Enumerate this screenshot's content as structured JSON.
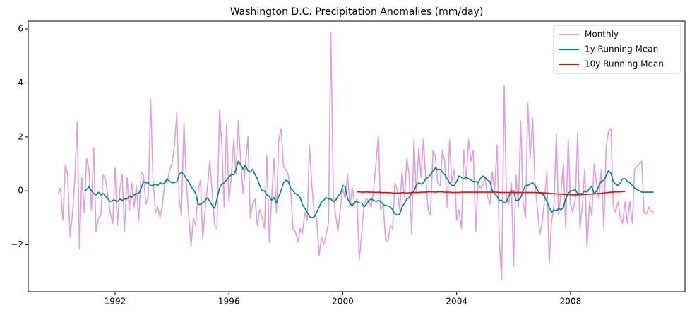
{
  "chart_data": {
    "type": "line",
    "title": "Washington D.C. Precipitation Anomalies (mm/day)",
    "x": [
      1990,
      1990.08,
      1990.17,
      1990.25,
      1990.33,
      1990.42,
      1990.5,
      1990.58,
      1990.67,
      1990.75,
      1990.83,
      1990.92,
      1991,
      1991.08,
      1991.17,
      1991.25,
      1991.33,
      1991.42,
      1991.5,
      1991.58,
      1991.67,
      1991.75,
      1991.83,
      1991.92,
      1992,
      1992.08,
      1992.17,
      1992.25,
      1992.33,
      1992.42,
      1992.5,
      1992.58,
      1992.67,
      1992.75,
      1992.83,
      1992.92,
      1993,
      1993.08,
      1993.17,
      1993.25,
      1993.33,
      1993.42,
      1993.5,
      1993.58,
      1993.67,
      1993.75,
      1993.83,
      1993.92,
      1994,
      1994.08,
      1994.17,
      1994.25,
      1994.33,
      1994.42,
      1994.5,
      1994.58,
      1994.67,
      1994.75,
      1994.83,
      1994.92,
      1995,
      1995.08,
      1995.17,
      1995.25,
      1995.33,
      1995.42,
      1995.5,
      1995.58,
      1995.67,
      1995.75,
      1995.83,
      1995.92,
      1996,
      1996.08,
      1996.17,
      1996.25,
      1996.33,
      1996.42,
      1996.5,
      1996.58,
      1996.67,
      1996.75,
      1996.83,
      1996.92,
      1997,
      1997.08,
      1997.17,
      1997.25,
      1997.33,
      1997.42,
      1997.5,
      1997.58,
      1997.67,
      1997.75,
      1997.83,
      1997.92,
      1998,
      1998.08,
      1998.17,
      1998.25,
      1998.33,
      1998.42,
      1998.5,
      1998.58,
      1998.67,
      1998.75,
      1998.83,
      1998.92,
      1999,
      1999.08,
      1999.17,
      1999.25,
      1999.33,
      1999.42,
      1999.5,
      1999.58,
      1999.67,
      1999.75,
      1999.83,
      1999.92,
      2000,
      2000.08,
      2000.17,
      2000.25,
      2000.33,
      2000.42,
      2000.5,
      2000.58,
      2000.67,
      2000.75,
      2000.83,
      2000.92,
      2001,
      2001.08,
      2001.17,
      2001.25,
      2001.33,
      2001.42,
      2001.5,
      2001.58,
      2001.67,
      2001.75,
      2001.83,
      2001.92,
      2002,
      2002.08,
      2002.17,
      2002.25,
      2002.33,
      2002.42,
      2002.5,
      2002.58,
      2002.67,
      2002.75,
      2002.83,
      2002.92,
      2003,
      2003.08,
      2003.17,
      2003.25,
      2003.33,
      2003.42,
      2003.5,
      2003.58,
      2003.67,
      2003.75,
      2003.83,
      2003.92,
      2004,
      2004.08,
      2004.17,
      2004.25,
      2004.33,
      2004.42,
      2004.5,
      2004.58,
      2004.67,
      2004.75,
      2004.83,
      2004.92,
      2005,
      2005.08,
      2005.17,
      2005.25,
      2005.33,
      2005.42,
      2005.5,
      2005.58,
      2005.67,
      2005.75,
      2005.83,
      2005.92,
      2006,
      2006.08,
      2006.17,
      2006.25,
      2006.33,
      2006.42,
      2006.5,
      2006.58,
      2006.67,
      2006.75,
      2006.83,
      2006.92,
      2007,
      2007.08,
      2007.17,
      2007.25,
      2007.33,
      2007.42,
      2007.5,
      2007.58,
      2007.67,
      2007.75,
      2007.83,
      2007.92,
      2008,
      2008.08,
      2008.17,
      2008.25,
      2008.33,
      2008.42,
      2008.5,
      2008.58,
      2008.67,
      2008.75,
      2008.83,
      2008.92,
      2009,
      2009.08,
      2009.17,
      2009.25,
      2009.33,
      2009.42,
      2009.5,
      2009.58,
      2009.67,
      2009.75,
      2009.83,
      2009.92,
      2010,
      2010.08,
      2010.17,
      2010.25,
      2010.33,
      2010.42,
      2010.5,
      2010.58,
      2010.67,
      2010.75,
      2010.83,
      2010.92
    ],
    "series": [
      {
        "name": "Monthly",
        "color": "#dda0dd",
        "values": [
          -0.1,
          0.1,
          -1.1,
          0.95,
          0.7,
          -1.7,
          -0.9,
          0.3,
          2.55,
          -2.15,
          0.5,
          -0.8,
          1.2,
          0.8,
          -0.7,
          1.6,
          -1.5,
          -1.0,
          -0.9,
          0.6,
          0.4,
          -0.2,
          -0.8,
          -1.2,
          0.85,
          -1.3,
          0.1,
          0.6,
          -1.5,
          0.5,
          -0.7,
          0.3,
          -0.6,
          0.2,
          -1.1,
          0.7,
          0.6,
          -0.5,
          -0.2,
          3.4,
          0.5,
          -0.8,
          -0.6,
          -1.0,
          -0.5,
          0.4,
          0.3,
          0.8,
          1.0,
          1.6,
          2.9,
          -0.3,
          -0.9,
          2.55,
          0.4,
          -0.8,
          -2.05,
          -1.0,
          -1.3,
          0.0,
          0.4,
          -1.8,
          -0.6,
          0.2,
          1.1,
          -0.2,
          -1.3,
          -1.4,
          3.0,
          1.7,
          -0.6,
          2.5,
          -0.4,
          0.5,
          1.9,
          0.6,
          2.6,
          1.0,
          -0.1,
          1.0,
          2.0,
          -1.0,
          -0.5,
          -0.3,
          -1.3,
          -0.7,
          -1.0,
          -1.4,
          1.3,
          -1.9,
          -0.3,
          1.2,
          -0.8,
          1.9,
          2.3,
          0.9,
          0.8,
          0.6,
          0.0,
          -1.4,
          -1.5,
          -1.9,
          -1.4,
          -1.6,
          -0.8,
          -1.1,
          1.7,
          0.1,
          -0.9,
          -1.0,
          -2.4,
          -1.7,
          -2.0,
          -1.6,
          -1.2,
          5.85,
          -0.2,
          -0.9,
          -1.5,
          -0.6,
          0.1,
          -0.3,
          0.6,
          -0.6,
          0.1,
          -0.5,
          -0.3,
          -2.55,
          -1.5,
          -0.5,
          -0.3,
          -0.4,
          -0.6,
          0.0,
          1.1,
          2.05,
          -0.7,
          -0.5,
          -1.8,
          -1.9,
          -1.3,
          -1.4,
          0.3,
          0.0,
          -0.7,
          0.7,
          -0.3,
          1.2,
          0.6,
          -1.6,
          1.9,
          -0.1,
          1.6,
          0.5,
          1.9,
          0.4,
          -0.7,
          -0.9,
          1.5,
          1.3,
          0.3,
          0.2,
          1.5,
          1.1,
          -0.6,
          1.9,
          0.3,
          0.8,
          -1.1,
          -0.7,
          -1.4,
          1.5,
          0.4,
          1.9,
          1.1,
          1.5,
          -1.5,
          0.3,
          0.1,
          0.2,
          0.5,
          -0.2,
          -0.5,
          0.7,
          0.0,
          1.7,
          -1.9,
          -3.3,
          3.9,
          -0.3,
          -0.5,
          0.3,
          -2.8,
          0.6,
          -0.6,
          2.6,
          -0.4,
          -1.0,
          3.25,
          1.2,
          2.7,
          0.3,
          -0.6,
          -1.6,
          -1.2,
          -0.4,
          0.7,
          -2.7,
          -1.2,
          -0.5,
          2.1,
          -0.9,
          0.0,
          1.0,
          -1.4,
          1.9,
          -0.5,
          -0.8,
          -0.3,
          2.15,
          -1.4,
          -0.5,
          0.8,
          -2.1,
          -0.4,
          -0.9,
          1.0,
          0.2,
          -0.3,
          0.8,
          -1.4,
          1.6,
          2.2,
          2.3,
          -0.5,
          -0.8,
          -0.4,
          -1.0,
          -1.2,
          -0.4,
          -1.2,
          -0.4,
          -1.2,
          0.8,
          0.9,
          1.0,
          1.1,
          -0.8,
          -0.85,
          -0.6,
          -0.75,
          -0.8
        ]
      },
      {
        "name": "1y Running Mean",
        "color": "#008080",
        "values": [
          null,
          null,
          null,
          null,
          null,
          null,
          null,
          null,
          null,
          null,
          null,
          0.0,
          0.05,
          0.15,
          0.0,
          -0.1,
          -0.15,
          -0.05,
          -0.15,
          -0.1,
          -0.2,
          -0.3,
          -0.4,
          -0.35,
          -0.35,
          -0.4,
          -0.3,
          -0.35,
          -0.3,
          -0.3,
          -0.2,
          -0.25,
          -0.15,
          -0.1,
          -0.1,
          0.1,
          0.35,
          0.3,
          0.3,
          0.2,
          0.2,
          0.25,
          0.2,
          0.3,
          0.25,
          0.3,
          0.45,
          0.35,
          0.3,
          0.3,
          0.35,
          0.6,
          0.7,
          0.6,
          0.45,
          0.35,
          0.15,
          0.05,
          -0.1,
          -0.5,
          -0.5,
          -0.45,
          -0.35,
          -0.25,
          -0.4,
          -0.55,
          -0.65,
          -0.3,
          0.1,
          0.25,
          0.3,
          0.4,
          0.5,
          0.6,
          0.6,
          0.8,
          1.1,
          0.95,
          0.8,
          0.95,
          0.75,
          0.7,
          0.8,
          0.6,
          0.45,
          0.2,
          0.0,
          0.0,
          -0.15,
          -0.2,
          -0.35,
          -0.25,
          -0.45,
          -0.2,
          0.0,
          0.3,
          0.4,
          0.35,
          0.1,
          0.0,
          -0.1,
          -0.15,
          -0.25,
          -0.5,
          -0.65,
          -0.8,
          -0.95,
          -1.0,
          -0.95,
          -0.8,
          -0.6,
          -0.4,
          -0.35,
          -0.25,
          -0.3,
          -0.3,
          -0.4,
          -0.35,
          -0.2,
          -0.1,
          0.2,
          0.15,
          -0.3,
          -0.45,
          -0.55,
          -0.4,
          -0.4,
          -0.45,
          -0.45,
          -0.6,
          -0.5,
          -0.35,
          -0.3,
          -0.35,
          -0.4,
          -0.35,
          -0.4,
          -0.5,
          -0.55,
          -0.55,
          -0.6,
          -0.7,
          -0.85,
          -0.9,
          -0.85,
          -0.6,
          -0.45,
          -0.3,
          -0.25,
          -0.1,
          0.0,
          0.2,
          0.3,
          0.25,
          0.3,
          0.45,
          0.5,
          0.6,
          0.75,
          0.85,
          0.8,
          0.8,
          0.7,
          0.6,
          0.45,
          0.3,
          0.2,
          0.2,
          0.35,
          0.55,
          0.5,
          0.45,
          0.5,
          0.45,
          0.4,
          0.35,
          0.35,
          0.3,
          0.45,
          0.55,
          0.5,
          0.4,
          0.35,
          0.0,
          -0.1,
          -0.2,
          -0.35,
          -0.35,
          -0.45,
          -0.4,
          -0.2,
          0.0,
          0.0,
          -0.35,
          -0.35,
          -0.25,
          0.0,
          0.2,
          0.2,
          0.25,
          0.3,
          0.2,
          0.05,
          -0.1,
          -0.1,
          -0.2,
          -0.4,
          -0.6,
          -0.8,
          -0.7,
          -0.75,
          -0.65,
          -0.7,
          -0.6,
          -0.3,
          -0.1,
          0.0,
          0.0,
          0.05,
          -0.1,
          -0.1,
          -0.1,
          0.0,
          -0.05,
          0.1,
          0.15,
          -0.1,
          0.0,
          0.2,
          0.35,
          0.4,
          0.55,
          0.75,
          0.65,
          0.35,
          0.25,
          0.2,
          0.3,
          0.45,
          0.45,
          0.35,
          0.3,
          0.2,
          0.1,
          0.05,
          0.0,
          -0.05,
          -0.05,
          -0.05,
          -0.05,
          -0.05,
          -0.05
        ]
      },
      {
        "name": "10y Running Mean",
        "color": "#ff0000",
        "values": [
          null,
          null,
          null,
          null,
          null,
          null,
          null,
          null,
          null,
          null,
          null,
          null,
          null,
          null,
          null,
          null,
          null,
          null,
          null,
          null,
          null,
          null,
          null,
          null,
          null,
          null,
          null,
          null,
          null,
          null,
          null,
          null,
          null,
          null,
          null,
          null,
          null,
          null,
          null,
          null,
          null,
          null,
          null,
          null,
          null,
          null,
          null,
          null,
          null,
          null,
          null,
          null,
          null,
          null,
          null,
          null,
          null,
          null,
          null,
          null,
          null,
          null,
          null,
          null,
          null,
          null,
          null,
          null,
          null,
          null,
          null,
          null,
          null,
          null,
          null,
          null,
          null,
          null,
          null,
          null,
          null,
          null,
          null,
          null,
          null,
          null,
          null,
          null,
          null,
          null,
          null,
          null,
          null,
          null,
          null,
          null,
          null,
          null,
          null,
          null,
          null,
          null,
          null,
          null,
          null,
          null,
          null,
          null,
          null,
          null,
          null,
          null,
          null,
          null,
          null,
          null,
          null,
          null,
          null,
          null,
          null,
          null,
          null,
          null,
          null,
          null,
          -0.04,
          -0.04,
          -0.05,
          -0.05,
          -0.04,
          -0.05,
          -0.05,
          -0.05,
          -0.06,
          -0.05,
          -0.06,
          -0.07,
          -0.06,
          -0.07,
          -0.07,
          -0.08,
          -0.08,
          -0.08,
          -0.08,
          -0.07,
          -0.07,
          -0.08,
          -0.07,
          -0.07,
          -0.06,
          -0.06,
          -0.06,
          -0.05,
          -0.05,
          -0.05,
          -0.04,
          -0.04,
          -0.04,
          -0.05,
          -0.04,
          -0.04,
          -0.04,
          -0.05,
          -0.05,
          -0.05,
          -0.06,
          -0.06,
          -0.06,
          -0.06,
          -0.05,
          -0.05,
          -0.05,
          -0.05,
          -0.05,
          -0.05,
          -0.05,
          -0.05,
          -0.05,
          -0.05,
          -0.05,
          -0.05,
          -0.05,
          -0.05,
          -0.05,
          -0.05,
          -0.06,
          -0.06,
          -0.06,
          -0.06,
          -0.06,
          -0.06,
          -0.06,
          -0.06,
          -0.06,
          -0.06,
          -0.06,
          -0.06,
          -0.06,
          -0.06,
          -0.06,
          -0.06,
          -0.07,
          -0.07,
          -0.07,
          -0.08,
          -0.08,
          -0.09,
          -0.1,
          -0.1,
          -0.11,
          -0.12,
          -0.12,
          -0.13,
          -0.13,
          -0.14,
          -0.14,
          -0.15,
          -0.15,
          -0.15,
          -0.14,
          -0.14,
          -0.13,
          -0.13,
          -0.12,
          -0.12,
          -0.11,
          -0.1,
          -0.1,
          -0.09,
          -0.08,
          -0.07,
          -0.06,
          -0.05,
          -0.05,
          -0.04,
          -0.04,
          -0.04,
          -0.03,
          -0.03,
          null,
          null,
          null,
          null,
          null,
          null,
          null,
          null,
          null,
          null,
          null,
          null
        ]
      }
    ],
    "xlim": [
      1988.95,
      2012.02
    ],
    "xticks": [
      1992,
      1996,
      2000,
      2004,
      2008
    ],
    "ylim": [
      -3.74,
      6.29
    ],
    "yticks": [
      {
        "value": -2,
        "label": "−2"
      },
      0,
      2,
      4,
      6
    ],
    "legend": "upper right"
  }
}
